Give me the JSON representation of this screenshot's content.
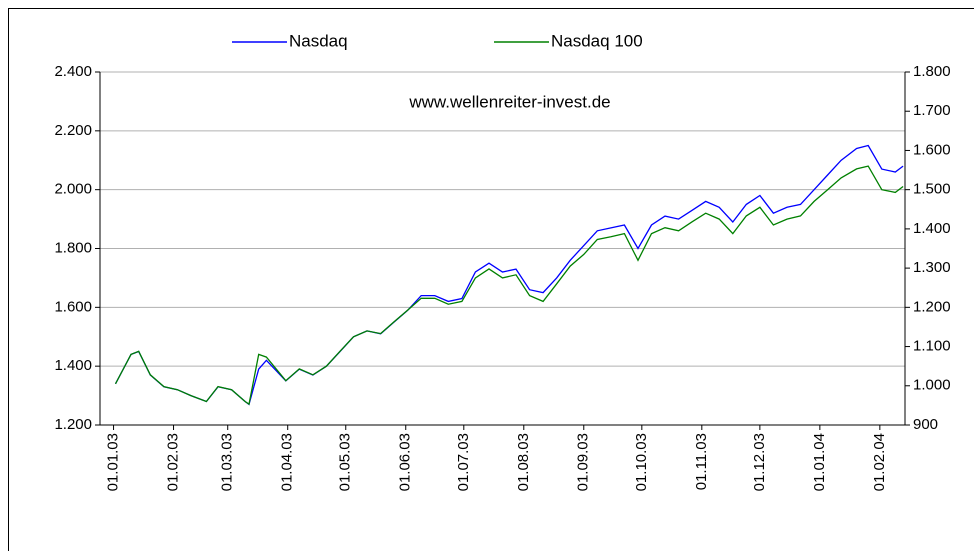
{
  "chart_data": {
    "type": "line",
    "annotations": [
      "www.wellenreiter-invest.de"
    ],
    "x": [
      "2003-01-02",
      "2003-01-10",
      "2003-01-14",
      "2003-01-20",
      "2003-01-27",
      "2003-02-03",
      "2003-02-10",
      "2003-02-18",
      "2003-02-24",
      "2003-03-03",
      "2003-03-10",
      "2003-03-12",
      "2003-03-17",
      "2003-03-21",
      "2003-03-31",
      "2003-04-07",
      "2003-04-14",
      "2003-04-21",
      "2003-04-28",
      "2003-05-05",
      "2003-05-12",
      "2003-05-19",
      "2003-05-26",
      "2003-06-02",
      "2003-06-09",
      "2003-06-16",
      "2003-06-23",
      "2003-06-30",
      "2003-07-07",
      "2003-07-14",
      "2003-07-21",
      "2003-07-28",
      "2003-08-04",
      "2003-08-11",
      "2003-08-18",
      "2003-08-25",
      "2003-09-01",
      "2003-09-08",
      "2003-09-15",
      "2003-09-22",
      "2003-09-29",
      "2003-10-06",
      "2003-10-13",
      "2003-10-20",
      "2003-10-27",
      "2003-11-03",
      "2003-11-10",
      "2003-11-17",
      "2003-11-24",
      "2003-12-01",
      "2003-12-08",
      "2003-12-15",
      "2003-12-22",
      "2003-12-29",
      "2004-01-05",
      "2004-01-12",
      "2004-01-20",
      "2004-01-26",
      "2004-02-02",
      "2004-02-09",
      "2004-02-13"
    ],
    "series": [
      {
        "name": "Nasdaq",
        "color": "#0000ff",
        "axis": "y",
        "values": [
          1340,
          1440,
          1450,
          1370,
          1330,
          1320,
          1300,
          1280,
          1330,
          1320,
          1280,
          1270,
          1390,
          1420,
          1350,
          1390,
          1370,
          1400,
          1450,
          1500,
          1520,
          1510,
          1550,
          1590,
          1640,
          1640,
          1620,
          1630,
          1720,
          1750,
          1720,
          1730,
          1660,
          1650,
          1700,
          1760,
          1810,
          1860,
          1870,
          1880,
          1800,
          1880,
          1910,
          1900,
          1930,
          1960,
          1940,
          1890,
          1950,
          1980,
          1920,
          1940,
          1950,
          2000,
          2050,
          2100,
          2140,
          2150,
          2070,
          2060,
          2080
        ]
      },
      {
        "name": "Nasdaq 100",
        "color": "#008000",
        "axis": "y2",
        "values": [
          1005,
          1080,
          1088,
          1028,
          998,
          990,
          975,
          960,
          998,
          990,
          960,
          953,
          1080,
          1073,
          1013,
          1043,
          1028,
          1050,
          1088,
          1125,
          1140,
          1133,
          1163,
          1193,
          1223,
          1223,
          1208,
          1215,
          1275,
          1298,
          1275,
          1283,
          1230,
          1215,
          1260,
          1305,
          1335,
          1373,
          1380,
          1388,
          1320,
          1388,
          1403,
          1395,
          1418,
          1440,
          1425,
          1388,
          1433,
          1455,
          1410,
          1425,
          1433,
          1470,
          1500,
          1530,
          1553,
          1560,
          1500,
          1493,
          1508
        ]
      }
    ],
    "xlim": [
      "2002-12-25",
      "2004-02-14"
    ],
    "xticks": [
      {
        "value": "2003-01-01",
        "label": "01.01.03"
      },
      {
        "value": "2003-02-01",
        "label": "01.02.03"
      },
      {
        "value": "2003-03-01",
        "label": "01.03.03"
      },
      {
        "value": "2003-04-01",
        "label": "01.04.03"
      },
      {
        "value": "2003-05-01",
        "label": "01.05.03"
      },
      {
        "value": "2003-06-01",
        "label": "01.06.03"
      },
      {
        "value": "2003-07-01",
        "label": "01.07.03"
      },
      {
        "value": "2003-08-01",
        "label": "01.08.03"
      },
      {
        "value": "2003-09-01",
        "label": "01.09.03"
      },
      {
        "value": "2003-10-01",
        "label": "01.10.03"
      },
      {
        "value": "2003-11-01",
        "label": "01.11.03"
      },
      {
        "value": "2003-12-01",
        "label": "01.12.03"
      },
      {
        "value": "2004-01-01",
        "label": "01.01.04"
      },
      {
        "value": "2004-02-01",
        "label": "01.02.04"
      }
    ],
    "ylim": [
      1200,
      2400
    ],
    "yticks": [
      {
        "value": 1200,
        "label": "1.200"
      },
      {
        "value": 1400,
        "label": "1.400"
      },
      {
        "value": 1600,
        "label": "1.600"
      },
      {
        "value": 1800,
        "label": "1.800"
      },
      {
        "value": 2000,
        "label": "2.000"
      },
      {
        "value": 2200,
        "label": "2.200"
      },
      {
        "value": 2400,
        "label": "2.400"
      }
    ],
    "y2lim": [
      900,
      1800
    ],
    "y2ticks": [
      900,
      {
        "value": 1000,
        "label": "1.000"
      },
      {
        "value": 1100,
        "label": "1.100"
      },
      {
        "value": 1200,
        "label": "1.200"
      },
      {
        "value": 1300,
        "label": "1.300"
      },
      {
        "value": 1400,
        "label": "1.400"
      },
      {
        "value": 1500,
        "label": "1.500"
      },
      {
        "value": 1600,
        "label": "1.600"
      },
      {
        "value": 1700,
        "label": "1.700"
      },
      {
        "value": 1800,
        "label": "1.800"
      }
    ],
    "grid": true,
    "legend": "top"
  }
}
